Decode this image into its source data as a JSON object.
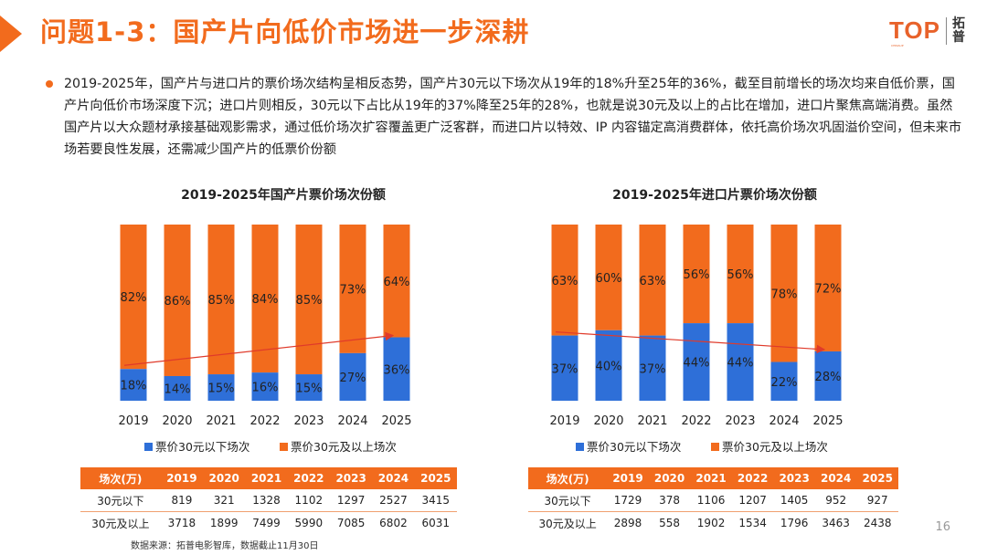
{
  "page": {
    "title": "问题1-3：国产片向低价市场进一步深耕",
    "page_number": "16",
    "source": "数据来源：拓普电影智库，数据截止11月30日",
    "logo": {
      "word": "TOP",
      "sub": "CHINAUP",
      "cn1": "拓",
      "cn2": "普"
    }
  },
  "summary": "2019-2025年，国产片与进口片的票价场次结构呈相反态势，国产片30元以下场次从19年的18%升至25年的36%，截至目前增长的场次均来自低价票，国产片向低价市场深度下沉；进口片则相反，30元以下占比从19年的37%降至25年的28%，也就是说30元及以上的占比在增加，进口片聚焦高端消费。虽然国产片以大众题材承接基础观影需求，通过低价场次扩容覆盖更广泛客群，而进口片以特效、IP 内容锚定高消费群体，依托高价场次巩固溢价空间，但未来市场若要良性发展，还需减少国产片的低票价份额",
  "colors": {
    "low": "#2e6fd8",
    "high": "#f26b1d",
    "trend": "#e03a2a"
  },
  "chart_data": [
    {
      "type": "bar",
      "stacked": true,
      "title": "2019-2025年国产片票价场次份额",
      "categories": [
        "2019",
        "2020",
        "2021",
        "2022",
        "2023",
        "2024",
        "2025"
      ],
      "series": [
        {
          "name": "票价30元以下场次",
          "values": [
            18,
            14,
            15,
            16,
            15,
            27,
            36
          ],
          "labels": [
            "18%",
            "14%",
            "15%",
            "16%",
            "15%",
            "27%",
            "36%"
          ]
        },
        {
          "name": "票价30元及以上场次",
          "values": [
            82,
            86,
            85,
            84,
            85,
            73,
            64
          ],
          "labels": [
            "82%",
            "86%",
            "85%",
            "84%",
            "85%",
            "73%",
            "64%"
          ]
        }
      ],
      "ylim": [
        0,
        100
      ],
      "trend_arrow": {
        "from": "2019",
        "to": "2025",
        "direction": "up"
      },
      "legend": "bottom",
      "table": {
        "header": [
          "场次(万)",
          "2019",
          "2020",
          "2021",
          "2022",
          "2023",
          "2024",
          "2025"
        ],
        "rows": [
          [
            "30元以下",
            "819",
            "321",
            "1328",
            "1102",
            "1297",
            "2527",
            "3415"
          ],
          [
            "30元及以上",
            "3718",
            "1899",
            "7499",
            "5990",
            "7085",
            "6802",
            "6031"
          ]
        ]
      }
    },
    {
      "type": "bar",
      "stacked": true,
      "title": "2019-2025年进口片票价场次份额",
      "categories": [
        "2019",
        "2020",
        "2021",
        "2022",
        "2023",
        "2024",
        "2025"
      ],
      "series": [
        {
          "name": "票价30元以下场次",
          "values": [
            37,
            40,
            37,
            44,
            44,
            22,
            28
          ],
          "labels": [
            "37%",
            "40%",
            "37%",
            "44%",
            "44%",
            "22%",
            "28%"
          ]
        },
        {
          "name": "票价30元及以上场次",
          "values": [
            63,
            60,
            63,
            56,
            56,
            78,
            72
          ],
          "labels": [
            "63%",
            "60%",
            "63%",
            "56%",
            "56%",
            "78%",
            "72%"
          ]
        }
      ],
      "ylim": [
        0,
        100
      ],
      "trend_arrow": {
        "from": "2019",
        "to": "2025",
        "direction": "down"
      },
      "legend": "bottom",
      "table": {
        "header": [
          "场次(万)",
          "2019",
          "2020",
          "2021",
          "2022",
          "2023",
          "2024",
          "2025"
        ],
        "rows": [
          [
            "30元以下",
            "1729",
            "378",
            "1106",
            "1207",
            "1405",
            "952",
            "927"
          ],
          [
            "30元及以上",
            "2898",
            "558",
            "1902",
            "1534",
            "1796",
            "3463",
            "2438"
          ]
        ]
      }
    }
  ]
}
